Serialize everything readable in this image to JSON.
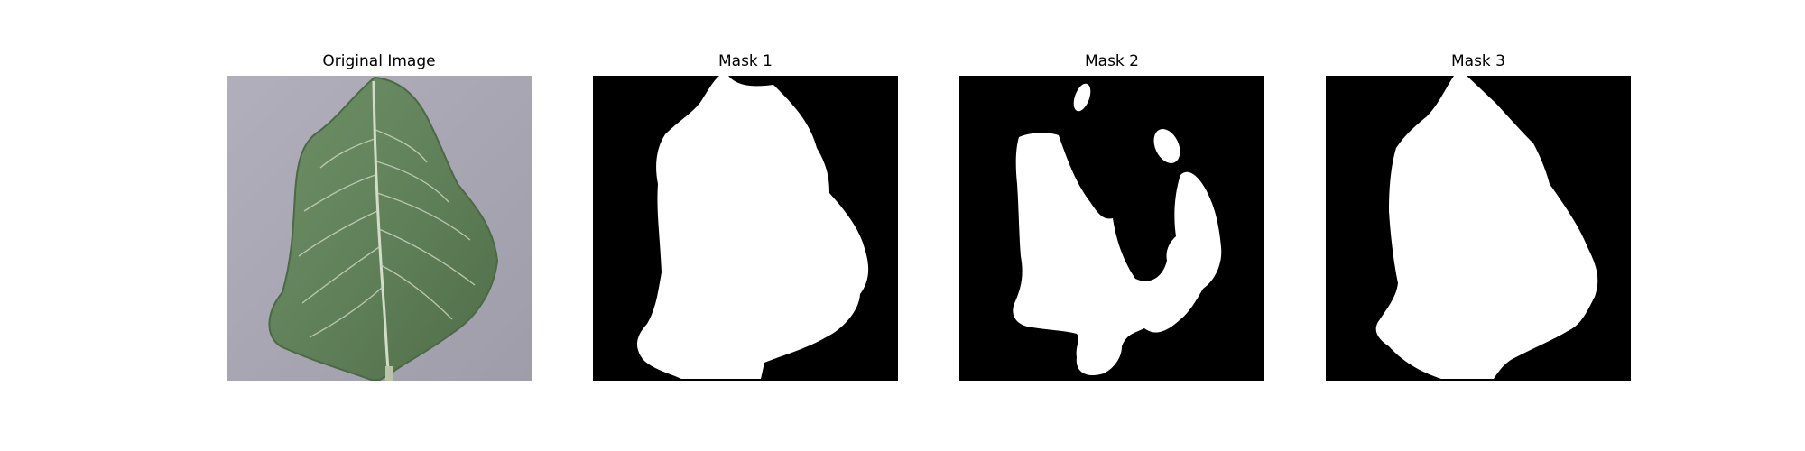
{
  "figure": {
    "panels": [
      {
        "title": "Original Image",
        "kind": "photo",
        "subject": "leaf-photo"
      },
      {
        "title": "Mask 1",
        "kind": "mask",
        "subject": "leaf-mask"
      },
      {
        "title": "Mask 2",
        "kind": "mask",
        "subject": "leaf-mask-fragmented"
      },
      {
        "title": "Mask 3",
        "kind": "mask",
        "subject": "leaf-mask"
      }
    ]
  },
  "colors": {
    "background": "#ffffff",
    "photo_background": "#a9a7b3",
    "leaf": "#5f7f58",
    "leaf_vein": "#cfd8c5",
    "mask_background": "#000000",
    "mask_foreground": "#ffffff"
  }
}
